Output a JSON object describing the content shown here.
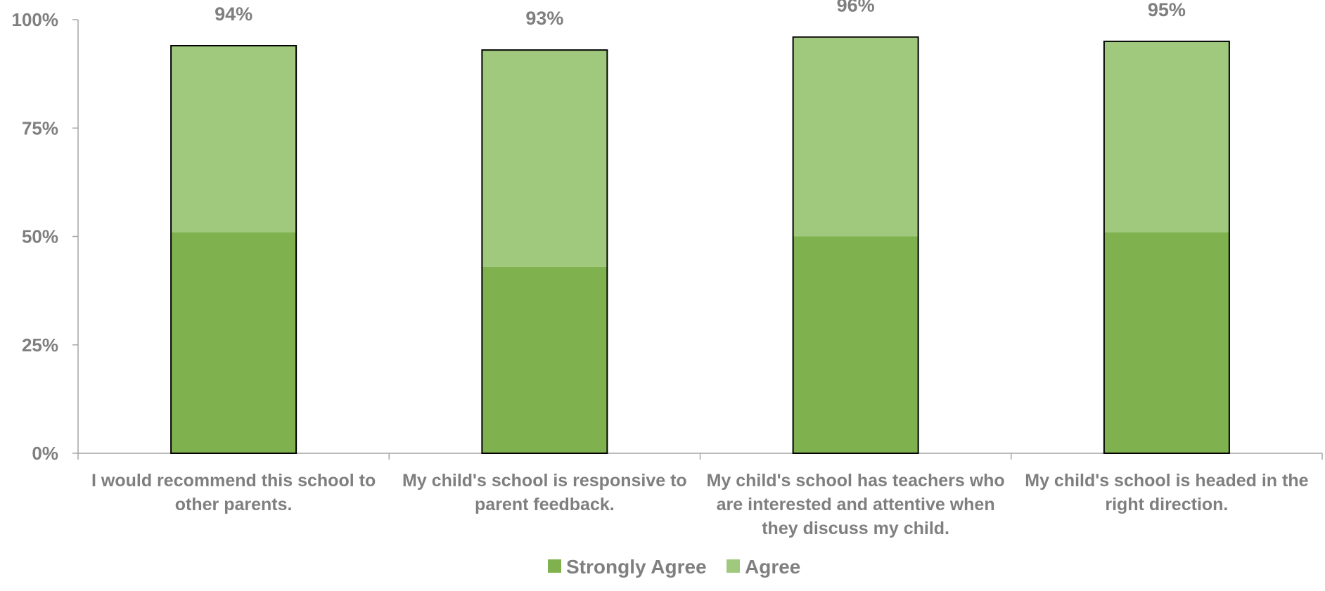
{
  "chart_data": {
    "type": "bar",
    "stacked": true,
    "categories": [
      [
        "I would recommend this school to",
        "other parents."
      ],
      [
        "My child's school is responsive to",
        "parent feedback."
      ],
      [
        "My child's school has teachers who",
        "are interested and attentive when",
        "they discuss my child."
      ],
      [
        "My child's school is headed in the",
        "right direction."
      ]
    ],
    "series": [
      {
        "name": "Strongly Agree",
        "values": [
          51,
          43,
          50,
          51
        ],
        "color": "#7fb24f"
      },
      {
        "name": "Agree",
        "values": [
          43,
          50,
          46,
          44
        ],
        "color": "#a1c97d"
      }
    ],
    "totals": [
      94,
      93,
      96,
      95
    ],
    "total_labels": [
      "94%",
      "93%",
      "96%",
      "95%"
    ],
    "ylim": [
      0,
      100
    ],
    "yticks": [
      0,
      25,
      50,
      75,
      100
    ],
    "ytick_labels": [
      "0%",
      "25%",
      "50%",
      "75%",
      "100%"
    ],
    "grid": false,
    "legend_position": "bottom",
    "colors": {
      "axis": "#a6a6a6",
      "text": "#7f7f7f",
      "bar_outline": "#000000"
    }
  }
}
